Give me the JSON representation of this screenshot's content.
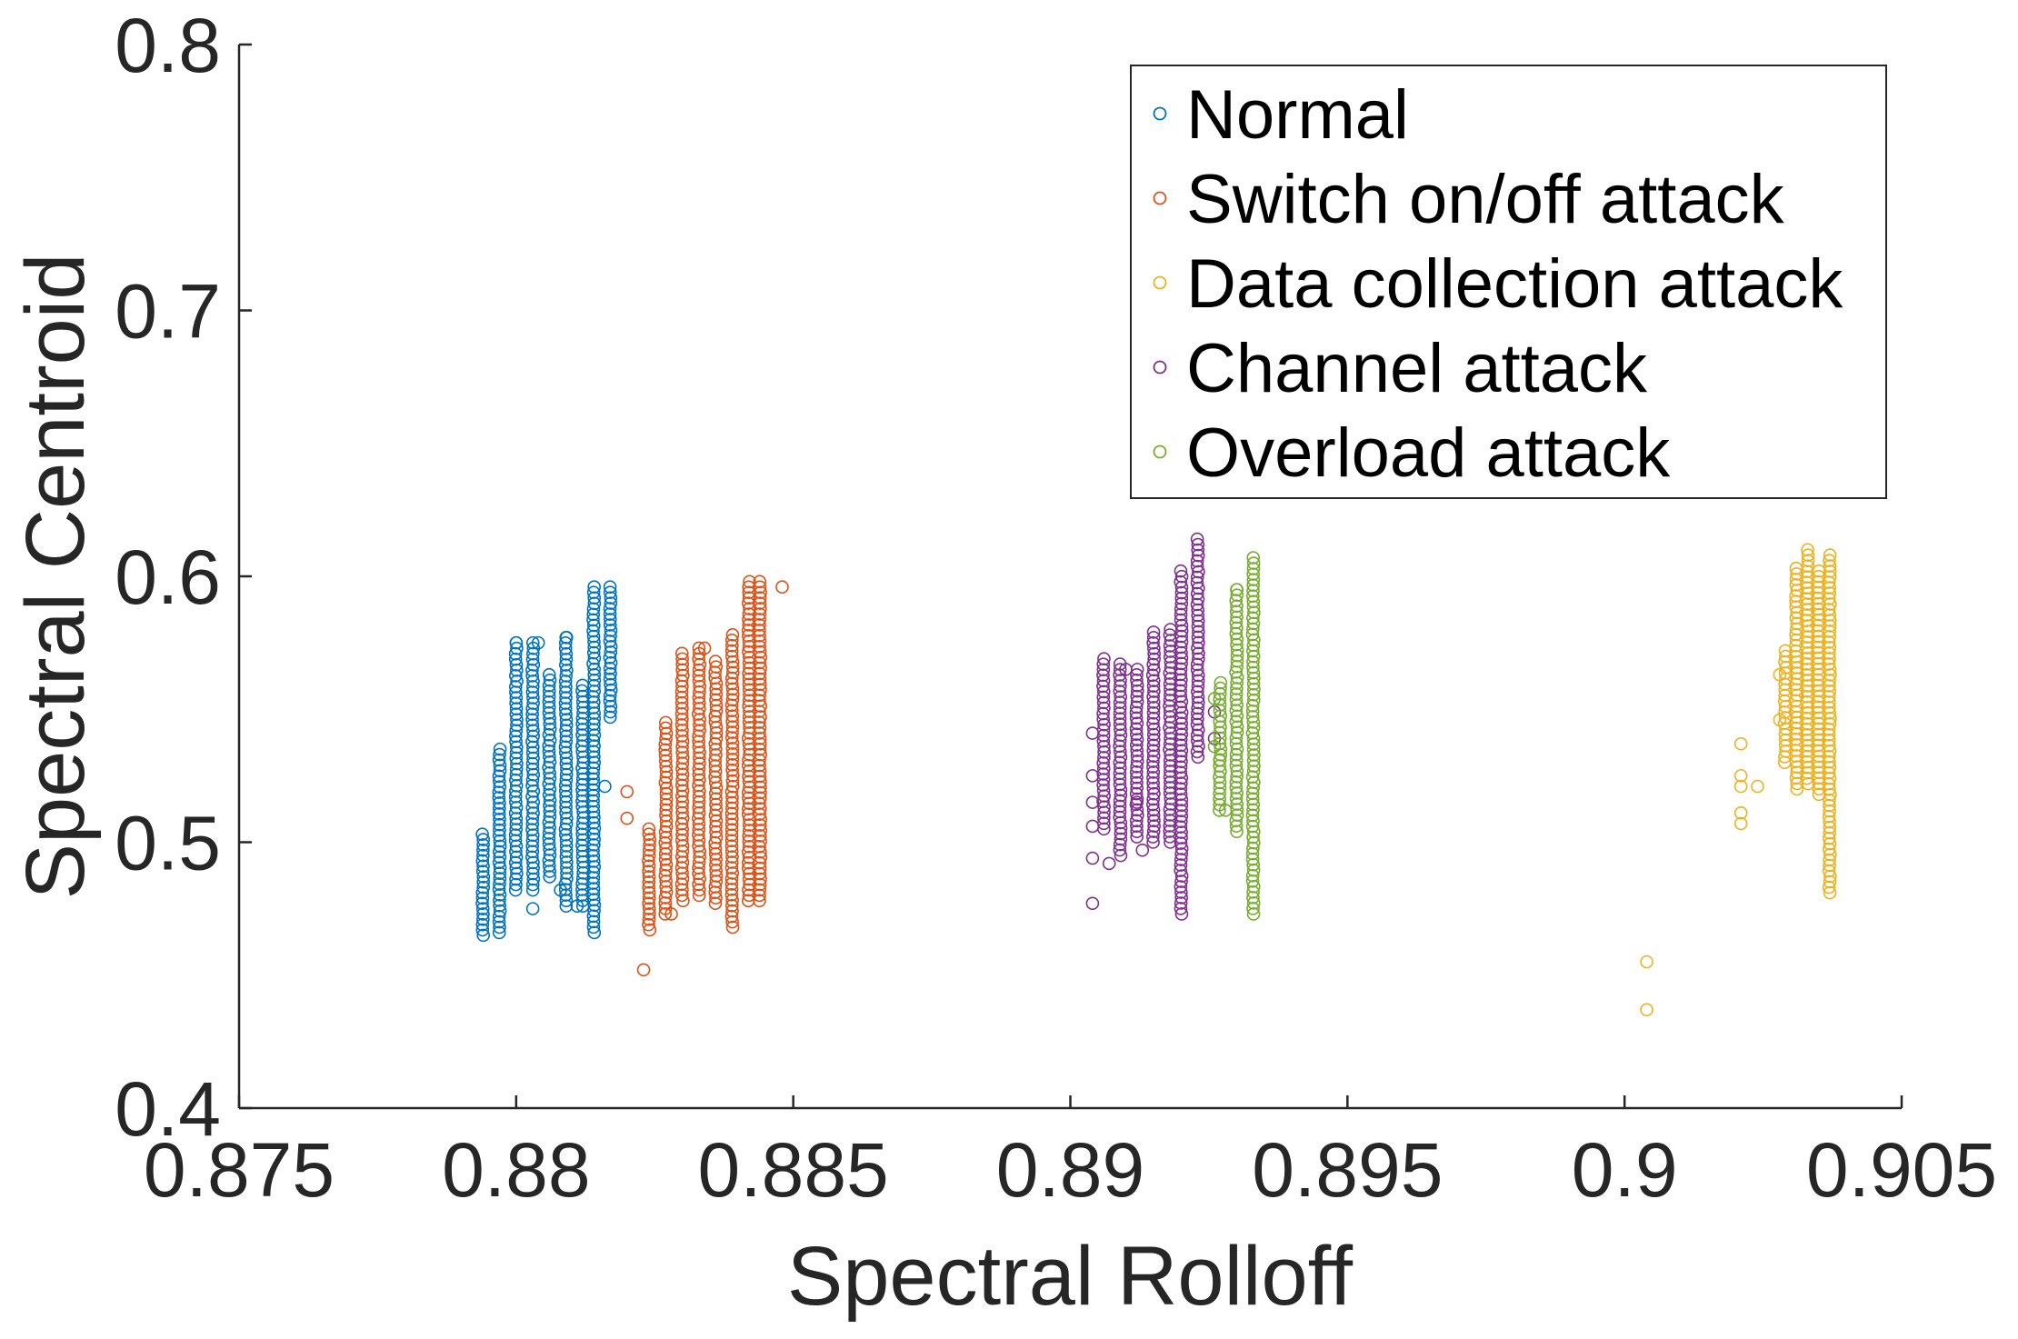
{
  "chart_data": {
    "type": "scatter",
    "xlabel": "Spectral Rolloff",
    "ylabel": "Spectral Centroid",
    "xlim": [
      0.875,
      0.905
    ],
    "ylim": [
      0.4,
      0.8
    ],
    "xticks": [
      0.875,
      0.88,
      0.885,
      0.89,
      0.895,
      0.9,
      0.905
    ],
    "xtick_labels": [
      "0.875",
      "0.88",
      "0.885",
      "0.89",
      "0.895",
      "0.9",
      "0.905"
    ],
    "yticks": [
      0.4,
      0.5,
      0.6,
      0.7,
      0.8
    ],
    "ytick_labels": [
      "0.4",
      "0.5",
      "0.6",
      "0.7",
      "0.8"
    ],
    "grid": false,
    "legend_position": "top-right",
    "marker": "open-circle",
    "series": [
      {
        "name": "Normal",
        "color": "#0072BD",
        "columns": [
          {
            "x": 0.8794,
            "ymin": 0.465,
            "ymax": 0.503
          },
          {
            "x": 0.8797,
            "ymin": 0.466,
            "ymax": 0.535
          },
          {
            "x": 0.88,
            "ymin": 0.482,
            "ymax": 0.575
          },
          {
            "x": 0.8803,
            "ymin": 0.482,
            "ymax": 0.575
          },
          {
            "x": 0.8806,
            "ymin": 0.487,
            "ymax": 0.563
          },
          {
            "x": 0.8809,
            "ymin": 0.476,
            "ymax": 0.577
          },
          {
            "x": 0.8812,
            "ymin": 0.476,
            "ymax": 0.559
          },
          {
            "x": 0.8814,
            "ymin": 0.466,
            "ymax": 0.596
          },
          {
            "x": 0.8817,
            "ymin": 0.547,
            "ymax": 0.596
          }
        ],
        "points": [
          [
            0.88,
            0.575
          ],
          [
            0.8804,
            0.575
          ],
          [
            0.8809,
            0.577
          ],
          [
            0.8816,
            0.521
          ],
          [
            0.8803,
            0.475
          ],
          [
            0.8811,
            0.476
          ],
          [
            0.8808,
            0.482
          ]
        ]
      },
      {
        "name": "Switch on/off attack",
        "color": "#D95319",
        "columns": [
          {
            "x": 0.8824,
            "ymin": 0.467,
            "ymax": 0.505
          },
          {
            "x": 0.8827,
            "ymin": 0.473,
            "ymax": 0.545
          },
          {
            "x": 0.883,
            "ymin": 0.478,
            "ymax": 0.571
          },
          {
            "x": 0.8833,
            "ymin": 0.48,
            "ymax": 0.573
          },
          {
            "x": 0.8836,
            "ymin": 0.477,
            "ymax": 0.568
          },
          {
            "x": 0.8839,
            "ymin": 0.468,
            "ymax": 0.578
          },
          {
            "x": 0.8842,
            "ymin": 0.478,
            "ymax": 0.598
          },
          {
            "x": 0.8844,
            "ymin": 0.478,
            "ymax": 0.598
          }
        ],
        "points": [
          [
            0.882,
            0.519
          ],
          [
            0.882,
            0.509
          ],
          [
            0.8823,
            0.452
          ],
          [
            0.8848,
            0.596
          ],
          [
            0.8834,
            0.573
          ],
          [
            0.8828,
            0.473
          ]
        ]
      },
      {
        "name": "Data collection attack",
        "color": "#EDB120",
        "columns": [
          {
            "x": 0.9029,
            "ymin": 0.53,
            "ymax": 0.572
          },
          {
            "x": 0.9031,
            "ymin": 0.52,
            "ymax": 0.603
          },
          {
            "x": 0.9033,
            "ymin": 0.522,
            "ymax": 0.61
          },
          {
            "x": 0.9035,
            "ymin": 0.518,
            "ymax": 0.602
          },
          {
            "x": 0.9037,
            "ymin": 0.481,
            "ymax": 0.608
          }
        ],
        "points": [
          [
            0.9004,
            0.455
          ],
          [
            0.9004,
            0.437
          ],
          [
            0.9021,
            0.537
          ],
          [
            0.9021,
            0.525
          ],
          [
            0.9021,
            0.521
          ],
          [
            0.9021,
            0.511
          ],
          [
            0.9021,
            0.507
          ],
          [
            0.9024,
            0.521
          ],
          [
            0.9028,
            0.546
          ],
          [
            0.9028,
            0.563
          ]
        ]
      },
      {
        "name": "Channel attack",
        "color": "#7E2F8E",
        "columns": [
          {
            "x": 0.8906,
            "ymin": 0.505,
            "ymax": 0.569
          },
          {
            "x": 0.8909,
            "ymin": 0.495,
            "ymax": 0.567
          },
          {
            "x": 0.8912,
            "ymin": 0.502,
            "ymax": 0.565
          },
          {
            "x": 0.8915,
            "ymin": 0.5,
            "ymax": 0.579
          },
          {
            "x": 0.8918,
            "ymin": 0.5,
            "ymax": 0.58
          },
          {
            "x": 0.892,
            "ymin": 0.473,
            "ymax": 0.602
          },
          {
            "x": 0.8923,
            "ymin": 0.532,
            "ymax": 0.614
          }
        ],
        "points": [
          [
            0.8904,
            0.541
          ],
          [
            0.8904,
            0.525
          ],
          [
            0.8904,
            0.515
          ],
          [
            0.8904,
            0.506
          ],
          [
            0.8904,
            0.494
          ],
          [
            0.8904,
            0.477
          ],
          [
            0.8907,
            0.492
          ],
          [
            0.891,
            0.565
          ],
          [
            0.8912,
            0.515
          ],
          [
            0.8913,
            0.497
          ],
          [
            0.8926,
            0.549
          ],
          [
            0.8926,
            0.539
          ]
        ]
      },
      {
        "name": "Overload attack",
        "color": "#77AC30",
        "columns": [
          {
            "x": 0.8927,
            "ymin": 0.512,
            "ymax": 0.56
          },
          {
            "x": 0.893,
            "ymin": 0.504,
            "ymax": 0.595
          },
          {
            "x": 0.8933,
            "ymin": 0.473,
            "ymax": 0.607
          }
        ],
        "points": [
          [
            0.8926,
            0.536
          ],
          [
            0.8927,
            0.531
          ],
          [
            0.8928,
            0.512
          ],
          [
            0.8926,
            0.554
          ],
          [
            0.893,
            0.595
          ]
        ]
      }
    ]
  }
}
